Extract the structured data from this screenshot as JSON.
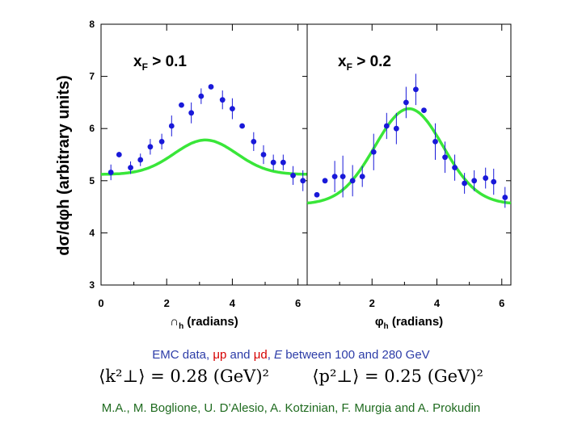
{
  "colors": {
    "points": "#1919d9",
    "fit": "#39e639",
    "axis": "#000000",
    "caption": "#2d3da8",
    "highlight": "#d60000",
    "credits": "#1f6b1f"
  },
  "chart_data": [
    {
      "type": "scatter",
      "panel": "left",
      "title": "",
      "label_prefix": "x",
      "label_sub": "F",
      "label_suffix": " > 0.1",
      "ylabel": "dσ/dφh (arbitrary units)",
      "xlabel_symbol": "∩",
      "xlabel_sub": "h",
      "xlabel_suffix": " (radians)",
      "xlim": [
        0,
        6.28
      ],
      "ylim": [
        3,
        8
      ],
      "xticks": [
        "0",
        "2",
        "4",
        "6"
      ],
      "yticks": [
        "8",
        "7",
        "6",
        "5",
        "4",
        "3"
      ],
      "fit_curve": {
        "series": "fit",
        "baseline": 5.12,
        "amplitude": 0.66,
        "peak_x": 3.18,
        "width": 0.95
      },
      "points": [
        {
          "x": 0.3,
          "y": 5.16,
          "err": 0.15
        },
        {
          "x": 0.55,
          "y": 5.5,
          "err": 0.05
        },
        {
          "x": 0.9,
          "y": 5.25,
          "err": 0.12
        },
        {
          "x": 1.2,
          "y": 5.4,
          "err": 0.12
        },
        {
          "x": 1.5,
          "y": 5.65,
          "err": 0.15
        },
        {
          "x": 1.85,
          "y": 5.75,
          "err": 0.15
        },
        {
          "x": 2.15,
          "y": 6.05,
          "err": 0.2
        },
        {
          "x": 2.45,
          "y": 6.45,
          "err": 0.03
        },
        {
          "x": 2.75,
          "y": 6.3,
          "err": 0.2
        },
        {
          "x": 3.05,
          "y": 6.62,
          "err": 0.15
        },
        {
          "x": 3.35,
          "y": 6.8,
          "err": 0.03
        },
        {
          "x": 3.7,
          "y": 6.55,
          "err": 0.18
        },
        {
          "x": 4.0,
          "y": 6.38,
          "err": 0.2
        },
        {
          "x": 4.3,
          "y": 6.05,
          "err": 0.03
        },
        {
          "x": 4.65,
          "y": 5.75,
          "err": 0.18
        },
        {
          "x": 4.95,
          "y": 5.5,
          "err": 0.18
        },
        {
          "x": 5.25,
          "y": 5.35,
          "err": 0.15
        },
        {
          "x": 5.55,
          "y": 5.35,
          "err": 0.15
        },
        {
          "x": 5.85,
          "y": 5.1,
          "err": 0.18
        },
        {
          "x": 6.15,
          "y": 5.0,
          "err": 0.2
        }
      ]
    },
    {
      "type": "scatter",
      "panel": "right",
      "title": "",
      "label_prefix": "x",
      "label_sub": "F",
      "label_suffix": " > 0.2",
      "xlabel_symbol": "φ",
      "xlabel_sub": "h",
      "xlabel_suffix": " (radians)",
      "xlim": [
        0,
        6.28
      ],
      "ylim": [
        3,
        8
      ],
      "xticks": [
        "2",
        "4",
        "6"
      ],
      "fit_curve": {
        "series": "fit",
        "baseline": 4.55,
        "amplitude": 1.83,
        "peak_x": 3.14,
        "width": 1.05
      },
      "points": [
        {
          "x": 0.3,
          "y": 4.73,
          "err": 0.05
        },
        {
          "x": 0.55,
          "y": 5.0,
          "err": 0.05
        },
        {
          "x": 0.85,
          "y": 5.08,
          "err": 0.3
        },
        {
          "x": 1.1,
          "y": 5.08,
          "err": 0.4
        },
        {
          "x": 1.4,
          "y": 5.0,
          "err": 0.3
        },
        {
          "x": 1.7,
          "y": 5.08,
          "err": 0.2
        },
        {
          "x": 2.05,
          "y": 5.55,
          "err": 0.35
        },
        {
          "x": 2.45,
          "y": 6.05,
          "err": 0.25
        },
        {
          "x": 2.75,
          "y": 6.0,
          "err": 0.3
        },
        {
          "x": 3.05,
          "y": 6.5,
          "err": 0.3
        },
        {
          "x": 3.35,
          "y": 6.75,
          "err": 0.3
        },
        {
          "x": 3.6,
          "y": 6.35,
          "err": 0.03
        },
        {
          "x": 3.95,
          "y": 5.75,
          "err": 0.35
        },
        {
          "x": 4.25,
          "y": 5.45,
          "err": 0.3
        },
        {
          "x": 4.55,
          "y": 5.25,
          "err": 0.25
        },
        {
          "x": 4.85,
          "y": 4.95,
          "err": 0.2
        },
        {
          "x": 5.15,
          "y": 5.0,
          "err": 0.2
        },
        {
          "x": 5.5,
          "y": 5.05,
          "err": 0.2
        },
        {
          "x": 5.75,
          "y": 4.98,
          "err": 0.25
        },
        {
          "x": 6.1,
          "y": 4.68,
          "err": 0.2
        }
      ]
    }
  ],
  "caption": {
    "part1": "EMC data, ",
    "mu_p": "μp",
    "and_text": " and ",
    "mu_d": "μd",
    "part2": ", ",
    "energy_symbol": "E",
    "part3": " between 100 and 280 GeV"
  },
  "formula": {
    "k_text": "⟨k²⊥⟩ = 0.28 (GeV)²",
    "p_text": "⟨p²⊥⟩ = 0.25 (GeV)²"
  },
  "credits": "M.A., M. Boglione, U. D’Alesio, A. Kotzinian, F. Murgia and A. Prokudin"
}
